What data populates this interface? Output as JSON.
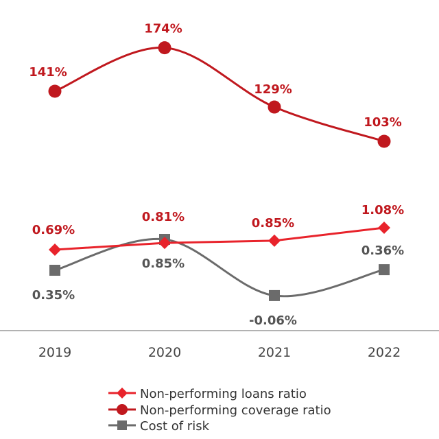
{
  "chart_data": {
    "type": "line",
    "title": "",
    "xlabel": "",
    "ylabel": "",
    "categories": [
      "2019",
      "2020",
      "2021",
      "2022"
    ],
    "series": [
      {
        "name": "Non-performing loans ratio",
        "values": [
          0.69,
          0.81,
          0.85,
          1.08
        ],
        "labels": [
          "0.69%",
          "0.81%",
          "0.85%",
          "1.08%"
        ],
        "color": "#e8232b",
        "marker": "diamond"
      },
      {
        "name": "Non-performing coverage ratio",
        "values": [
          141,
          174,
          129,
          103
        ],
        "labels": [
          "141%",
          "174%",
          "129%",
          "103%"
        ],
        "color": "#c0181e",
        "marker": "circle"
      },
      {
        "name": "Cost of risk",
        "values": [
          0.35,
          0.85,
          -0.06,
          0.36
        ],
        "labels": [
          "0.35%",
          "0.85%",
          "-0.06%",
          "0.36%"
        ],
        "color": "#6b6b6b",
        "marker": "square"
      }
    ],
    "grid": false,
    "legend_position": "bottom-center"
  },
  "colors": {
    "axis": "#999999",
    "tick_text": "#444444"
  }
}
